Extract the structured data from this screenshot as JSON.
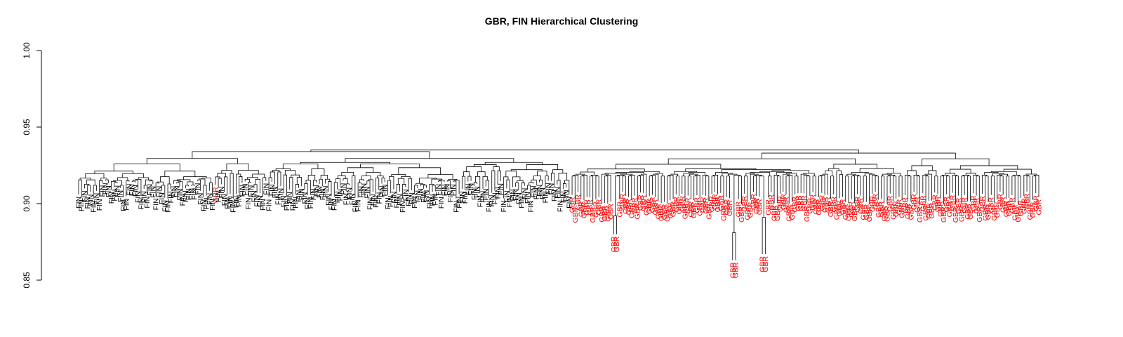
{
  "chart_data": {
    "type": "dendrogram",
    "title": "GBR, FIN Hierarchical Clustering",
    "ylabel": "",
    "xlabel": "",
    "ylim": [
      0.85,
      1.0
    ],
    "yticks": [
      "0.85",
      "0.90",
      "0.95",
      "1.00"
    ],
    "ytick_values": [
      0.85,
      0.9,
      0.95,
      1.0
    ],
    "groups": [
      {
        "name": "FIN",
        "color": "#000000",
        "count": 166,
        "label": "FIN",
        "merge_height": 0.934
      },
      {
        "name": "GBR",
        "color": "#ff0000",
        "count": 158,
        "label": "GBR",
        "merge_height": 0.933
      }
    ],
    "root_height": 0.935,
    "misplaced_leaves": [
      {
        "within": "FIN",
        "label": "GBR",
        "position": 46
      }
    ],
    "outlier_pairs": [
      {
        "label": "GBR",
        "merge_height": 0.892
      },
      {
        "label": "GBR",
        "merge_height": 0.881
      },
      {
        "label": "GBR",
        "merge_height": 0.891
      }
    ]
  }
}
